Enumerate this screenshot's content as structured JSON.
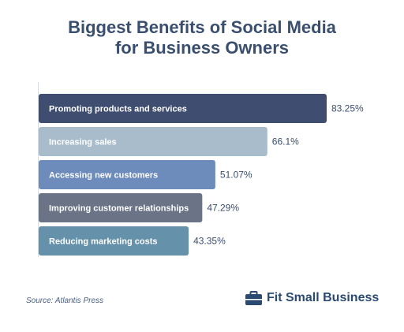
{
  "title_line1": "Biggest Benefits of Social Media",
  "title_line2": "for Business Owners",
  "chart_data": {
    "type": "bar",
    "orientation": "horizontal",
    "title": "Biggest Benefits of Social Media for Business Owners",
    "categories": [
      "Promoting products and services",
      "Increasing sales",
      "Accessing new customers",
      "Improving customer relationships",
      "Reducing marketing costs"
    ],
    "values": [
      83.25,
      66.1,
      51.07,
      47.29,
      43.35
    ],
    "value_labels": [
      "83.25%",
      "66.1%",
      "51.07%",
      "47.29%",
      "43.35%"
    ],
    "bar_colors": [
      "#3f4e70",
      "#a9bccb",
      "#6d8cbc",
      "#6a7486",
      "#6591aa"
    ],
    "xlim": [
      0,
      100
    ],
    "grid": false,
    "legend": "none"
  },
  "footer": {
    "source": "Source: Atlantis Press",
    "brand": "Fit Small Business"
  },
  "colors": {
    "title": "#3a4f6e",
    "axis": "#d6dde5",
    "brand": "#2a4a72"
  }
}
